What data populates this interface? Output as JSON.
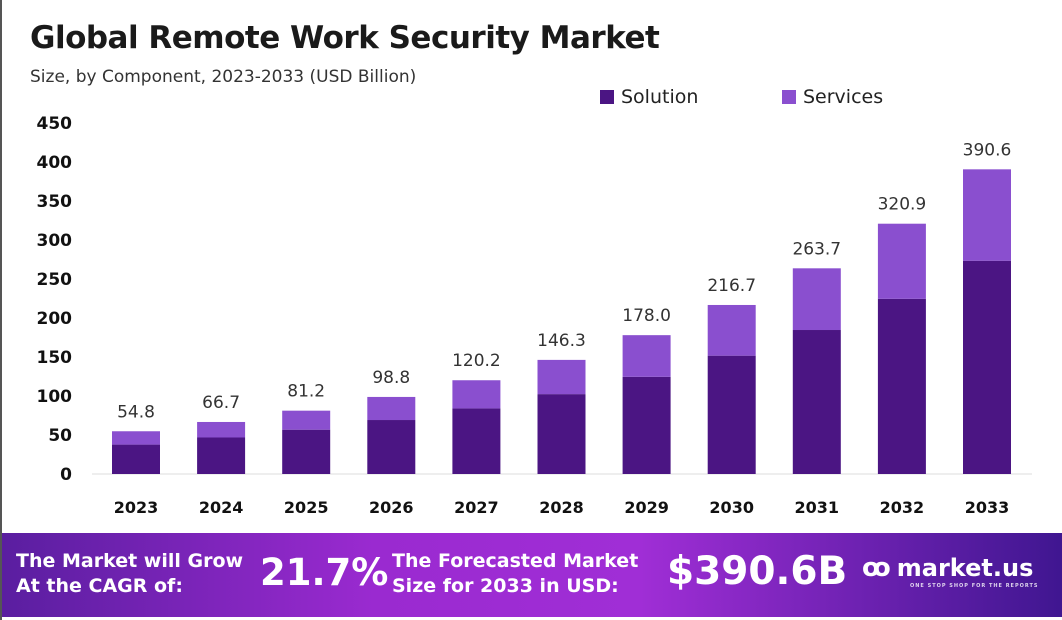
{
  "chart_data": {
    "type": "bar",
    "stacked": true,
    "title": "Global Remote Work Security Market",
    "subtitle": "Size, by Component, 2023-2033 (USD Billion)",
    "xlabel": "",
    "ylabel": "",
    "ylim": [
      0,
      450
    ],
    "yticks": [
      0,
      50,
      100,
      150,
      200,
      250,
      300,
      350,
      400,
      450
    ],
    "grid": false,
    "legend_position": "top-right",
    "categories": [
      "2023",
      "2024",
      "2025",
      "2026",
      "2027",
      "2028",
      "2029",
      "2030",
      "2031",
      "2032",
      "2033"
    ],
    "series": [
      {
        "name": "Solution",
        "color": "#4b1583",
        "values": [
          37.7,
          46.8,
          56.8,
          69.2,
          84.1,
          102.4,
          124.6,
          151.7,
          184.6,
          224.6,
          273.4
        ]
      },
      {
        "name": "Services",
        "color": "#8a4fcf",
        "values": [
          17.1,
          19.9,
          24.4,
          29.6,
          36.1,
          43.9,
          53.4,
          65.0,
          79.1,
          96.3,
          117.2
        ]
      }
    ],
    "totals": [
      "54.8",
      "66.7",
      "81.2",
      "98.8",
      "120.2",
      "146.3",
      "178.0",
      "216.7",
      "263.7",
      "320.9",
      "390.6"
    ]
  },
  "banner": {
    "cagr_label_1": "The Market will Grow",
    "cagr_label_2": "At the CAGR of:",
    "cagr_value": "21.7%",
    "forecast_label_1": "The Forecasted Market",
    "forecast_label_2": "Size for 2033 in USD:",
    "forecast_value": "$390.6B",
    "logo_text": "market.us",
    "logo_tagline": "ONE STOP SHOP FOR THE REPORTS"
  }
}
